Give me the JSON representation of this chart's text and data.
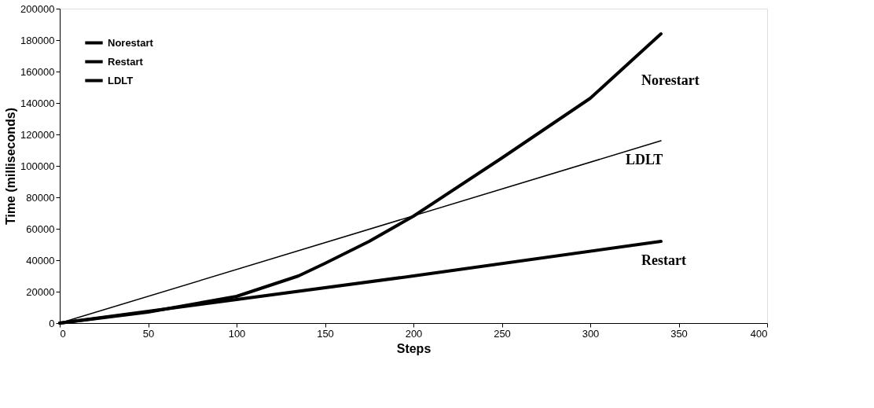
{
  "chart_data": {
    "type": "line",
    "xlabel": "Steps",
    "ylabel": "Time (milliseconds)",
    "xlim": [
      0,
      400
    ],
    "xticks": [
      0,
      50,
      100,
      150,
      200,
      250,
      300,
      350,
      400
    ],
    "ylim": [
      0,
      200000
    ],
    "yticks": [
      0,
      20000,
      40000,
      60000,
      80000,
      100000,
      120000,
      140000,
      160000,
      180000,
      200000
    ],
    "grid": false,
    "legend": "top left",
    "marker": "none",
    "line_style": "solid",
    "series": [
      {
        "name": "Norestart",
        "color": "#000000",
        "x": [
          0,
          50,
          100,
          135,
          150,
          175,
          200,
          250,
          300,
          340
        ],
        "values": [
          0,
          7000,
          17000,
          30000,
          38000,
          52000,
          68000,
          105000,
          143000,
          184000
        ]
      },
      {
        "name": "Restart",
        "color": "#000000",
        "x": [
          0,
          100,
          200,
          340
        ],
        "values": [
          0,
          15000,
          30000,
          52000
        ]
      },
      {
        "name": "LDLT",
        "color": "#000000",
        "x": [
          0,
          340
        ],
        "values": [
          0,
          116000
        ]
      }
    ]
  }
}
